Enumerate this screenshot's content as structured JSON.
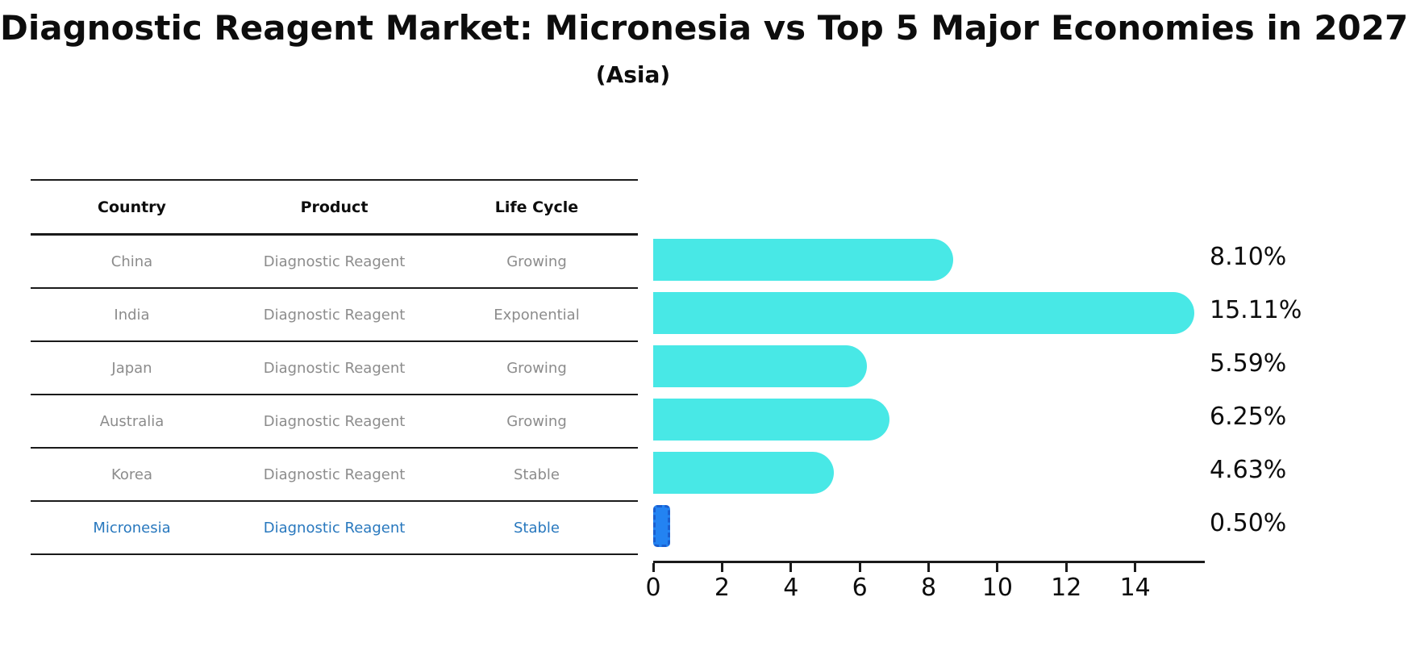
{
  "title": "Diagnostic Reagent Market: Micronesia vs Top 5 Major Economies in 2027",
  "subtitle": "(Asia)",
  "table": {
    "headers": [
      "Country",
      "Product",
      "Life Cycle"
    ],
    "rows": [
      {
        "country": "China",
        "product": "Diagnostic Reagent",
        "life_cycle": "Growing",
        "highlighted": false
      },
      {
        "country": "India",
        "product": "Diagnostic Reagent",
        "life_cycle": "Exponential",
        "highlighted": false
      },
      {
        "country": "Japan",
        "product": "Diagnostic Reagent",
        "life_cycle": "Growing",
        "highlighted": false
      },
      {
        "country": "Australia",
        "product": "Diagnostic Reagent",
        "life_cycle": "Growing",
        "highlighted": false
      },
      {
        "country": "Korea",
        "product": "Diagnostic Reagent",
        "life_cycle": "Stable",
        "highlighted": false
      },
      {
        "country": "Micronesia",
        "product": "Diagnostic Reagent",
        "life_cycle": "Stable",
        "highlighted": true
      }
    ]
  },
  "chart_data": {
    "type": "bar",
    "orientation": "horizontal",
    "title": "Diagnostic Reagent Market: Micronesia vs Top 5 Major Economies in 2027",
    "subtitle": "(Asia)",
    "categories": [
      "China",
      "India",
      "Japan",
      "Australia",
      "Korea",
      "Micronesia"
    ],
    "values": [
      8.1,
      15.11,
      5.59,
      6.25,
      4.63,
      0.5
    ],
    "value_labels": [
      "8.10%",
      "15.11%",
      "5.59%",
      "6.25%",
      "4.63%",
      "0.50%"
    ],
    "xticks": [
      0,
      2,
      4,
      6,
      8,
      10,
      12,
      14
    ],
    "xlim": [
      0,
      16
    ],
    "grid": false,
    "legend": false,
    "highlight_index": 5,
    "bar_color": "#48E8E6",
    "highlight_bar_color": "#2383F2"
  },
  "colors": {
    "bar": "#48E8E6",
    "highlight_bar": "#2383F2",
    "highlight_bar_edge": "#1A5FD0",
    "highlight_text": "#2878BE",
    "row_text": "#8C8C8C",
    "heading_text": "#0D0D0D",
    "line": "#1A1A1A",
    "background": "#FFFFFF"
  }
}
